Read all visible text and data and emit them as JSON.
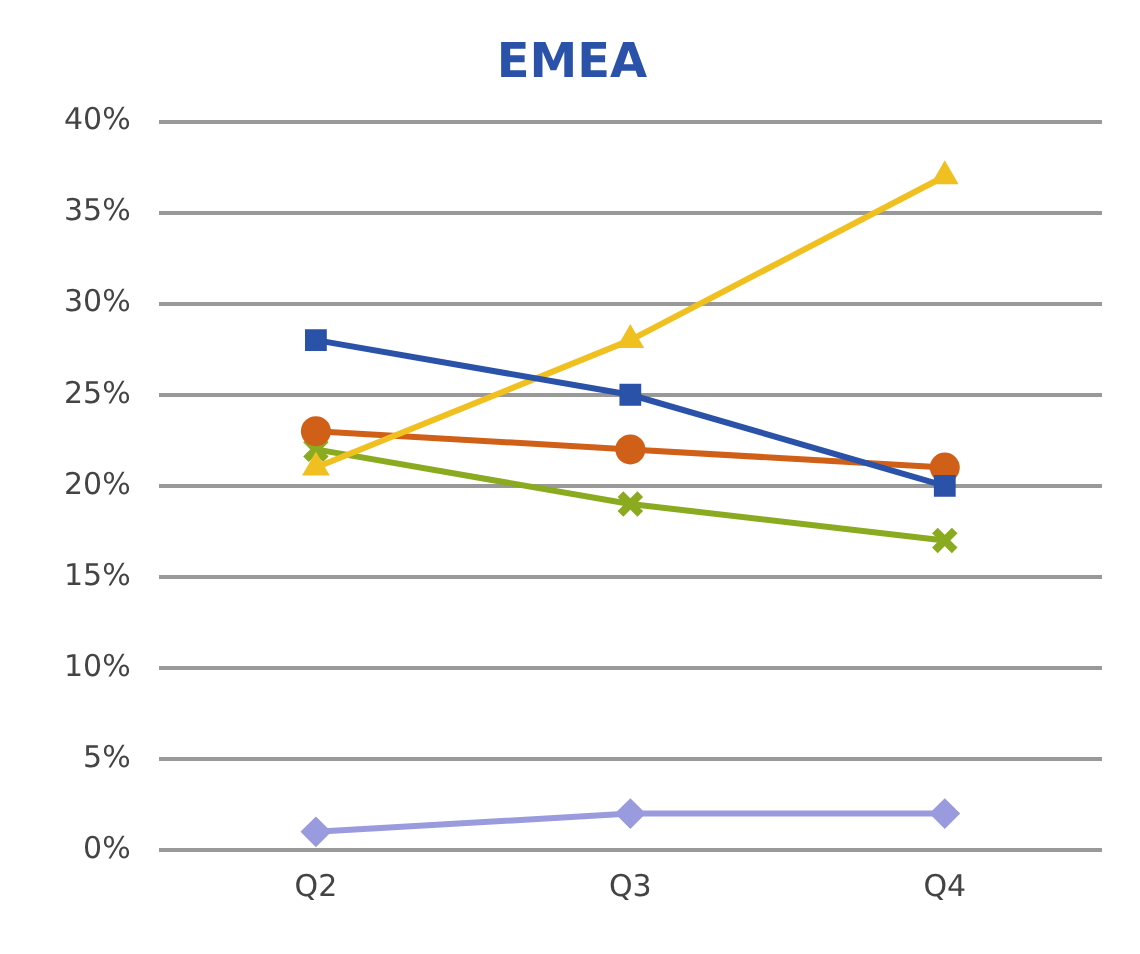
{
  "chart_data": {
    "type": "line",
    "title": "EMEA",
    "categories": [
      "Q2",
      "Q3",
      "Q4"
    ],
    "series": [
      {
        "color": "#2a52a8",
        "marker": "square",
        "values": [
          28,
          25,
          20
        ]
      },
      {
        "color": "#f0c020",
        "marker": "triangle",
        "values": [
          21,
          28,
          37
        ]
      },
      {
        "color": "#d06018",
        "marker": "circle",
        "values": [
          23,
          22,
          21
        ]
      },
      {
        "color": "#8aaa20",
        "marker": "cross",
        "values": [
          22,
          19,
          17
        ]
      },
      {
        "color": "#9a9ade",
        "marker": "diamond",
        "values": [
          1,
          2,
          2
        ]
      }
    ],
    "ylim": [
      0,
      40
    ],
    "yticks": [
      {
        "value": 0,
        "label": "0%"
      },
      {
        "value": 5,
        "label": "5%"
      },
      {
        "value": 10,
        "label": "10%"
      },
      {
        "value": 15,
        "label": "15%"
      },
      {
        "value": 20,
        "label": "20%"
      },
      {
        "value": 25,
        "label": "25%"
      },
      {
        "value": 30,
        "label": "30%"
      },
      {
        "value": 35,
        "label": "35%"
      },
      {
        "value": 40,
        "label": "40%"
      }
    ],
    "grid": "y",
    "legend": false,
    "line_style": "solid"
  }
}
